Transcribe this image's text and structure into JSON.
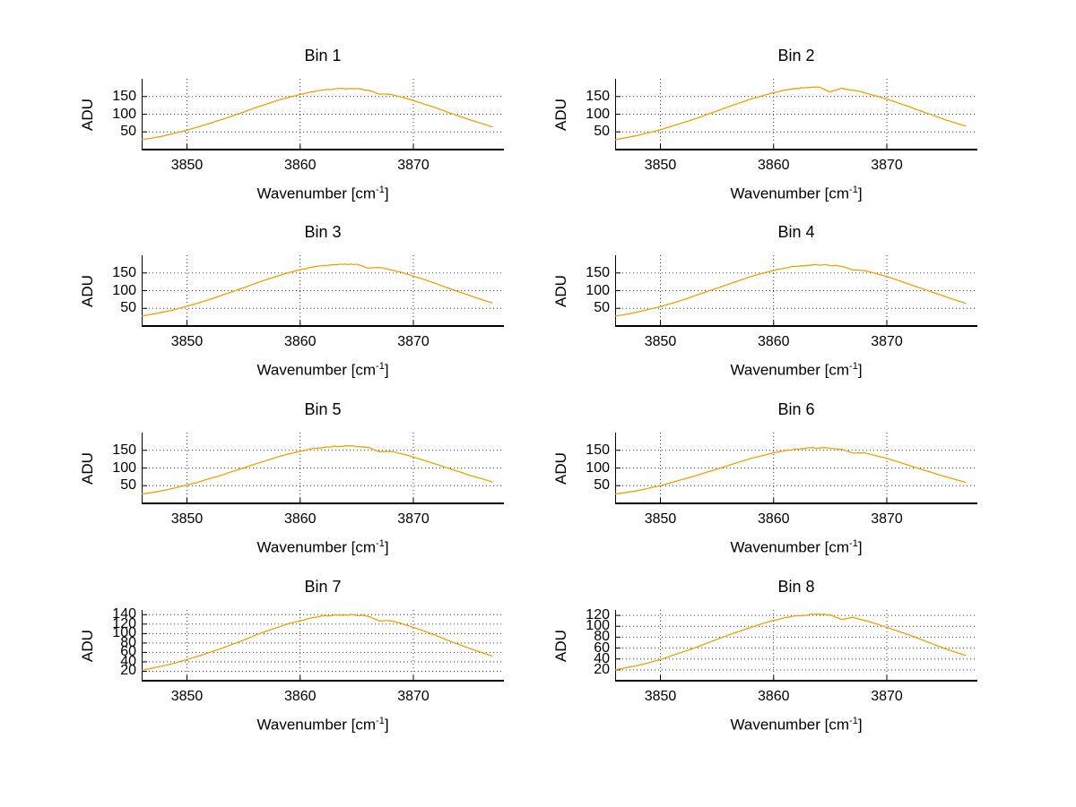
{
  "figure": {
    "background": "#ffffff",
    "line_color": "#EEA000",
    "axis_color": "#000000",
    "grid_color": "#3a3a3a"
  },
  "chart_data": [
    {
      "type": "line",
      "title": "Bin 1",
      "ylabel": "ADU",
      "xlabel": {
        "pre": "Wavenumber [cm",
        "sup": "-1",
        "post": "]"
      },
      "xlim": [
        3846,
        3878
      ],
      "ylim": [
        0,
        200
      ],
      "xticks": [
        3850,
        3860,
        3870
      ],
      "yticks": [
        50,
        100,
        150
      ],
      "x_start": 3846,
      "x_step": 1,
      "y": [
        28,
        33,
        39,
        47,
        55,
        64,
        74,
        84,
        95,
        106,
        118,
        128,
        139,
        148,
        156,
        163,
        168,
        171,
        173,
        172,
        167,
        157,
        156,
        148,
        139,
        128,
        118,
        106,
        95,
        84,
        74,
        64
      ]
    },
    {
      "type": "line",
      "title": "Bin 2",
      "ylabel": "ADU",
      "xlabel": {
        "pre": "Wavenumber [cm",
        "sup": "-1",
        "post": "]"
      },
      "xlim": [
        3846,
        3878
      ],
      "ylim": [
        0,
        200
      ],
      "xticks": [
        3850,
        3860,
        3870
      ],
      "yticks": [
        50,
        100,
        150
      ],
      "x_start": 3846,
      "x_step": 1,
      "y": [
        28,
        34,
        40,
        48,
        56,
        66,
        76,
        86,
        98,
        109,
        121,
        132,
        143,
        152,
        161,
        168,
        173,
        176,
        177,
        163,
        173,
        168,
        161,
        152,
        143,
        132,
        121,
        109,
        98,
        86,
        76,
        66
      ]
    },
    {
      "type": "line",
      "title": "Bin 3",
      "ylabel": "ADU",
      "xlabel": {
        "pre": "Wavenumber [cm",
        "sup": "-1",
        "post": "]"
      },
      "xlim": [
        3846,
        3878
      ],
      "ylim": [
        0,
        200
      ],
      "xticks": [
        3850,
        3860,
        3870
      ],
      "yticks": [
        50,
        100,
        150
      ],
      "x_start": 3846,
      "x_step": 1,
      "y": [
        28,
        34,
        40,
        47,
        56,
        65,
        75,
        86,
        97,
        108,
        120,
        131,
        141,
        151,
        159,
        166,
        171,
        174,
        175,
        174,
        164,
        166,
        159,
        151,
        141,
        131,
        120,
        108,
        97,
        86,
        75,
        65
      ]
    },
    {
      "type": "line",
      "title": "Bin 4",
      "ylabel": "ADU",
      "xlabel": {
        "pre": "Wavenumber [cm",
        "sup": "-1",
        "post": "]"
      },
      "xlim": [
        3846,
        3878
      ],
      "ylim": [
        0,
        200
      ],
      "xticks": [
        3850,
        3860,
        3870
      ],
      "yticks": [
        50,
        100,
        150
      ],
      "x_start": 3846,
      "x_step": 1,
      "y": [
        28,
        33,
        40,
        47,
        55,
        64,
        74,
        85,
        96,
        107,
        118,
        129,
        140,
        149,
        157,
        164,
        169,
        172,
        173,
        172,
        169,
        158,
        157,
        149,
        140,
        129,
        118,
        107,
        96,
        85,
        74,
        64
      ]
    },
    {
      "type": "line",
      "title": "Bin 5",
      "ylabel": "ADU",
      "xlabel": {
        "pre": "Wavenumber [cm",
        "sup": "-1",
        "post": "]"
      },
      "xlim": [
        3846,
        3878
      ],
      "ylim": [
        0,
        200
      ],
      "xticks": [
        3850,
        3860,
        3870
      ],
      "yticks": [
        50,
        100,
        150
      ],
      "x_start": 3846,
      "x_step": 1,
      "y": [
        26,
        31,
        37,
        44,
        52,
        60,
        70,
        79,
        90,
        100,
        111,
        121,
        131,
        140,
        147,
        154,
        158,
        161,
        162,
        161,
        158,
        146,
        147,
        140,
        131,
        121,
        111,
        100,
        90,
        79,
        70,
        60
      ]
    },
    {
      "type": "line",
      "title": "Bin 6",
      "ylabel": "ADU",
      "xlabel": {
        "pre": "Wavenumber [cm",
        "sup": "-1",
        "post": "]"
      },
      "xlim": [
        3846,
        3878
      ],
      "ylim": [
        0,
        200
      ],
      "xticks": [
        3850,
        3860,
        3870
      ],
      "yticks": [
        50,
        100,
        150
      ],
      "x_start": 3846,
      "x_step": 1,
      "y": [
        26,
        31,
        36,
        43,
        50,
        59,
        68,
        77,
        87,
        97,
        107,
        117,
        127,
        135,
        143,
        149,
        153,
        156,
        157,
        156,
        153,
        142,
        143,
        135,
        127,
        117,
        107,
        97,
        87,
        77,
        68,
        59
      ]
    },
    {
      "type": "line",
      "title": "Bin 7",
      "ylabel": "ADU",
      "xlabel": {
        "pre": "Wavenumber [cm",
        "sup": "-1",
        "post": "]"
      },
      "xlim": [
        3846,
        3878
      ],
      "ylim": [
        0,
        150
      ],
      "xticks": [
        3850,
        3860,
        3870
      ],
      "yticks": [
        20,
        40,
        60,
        80,
        100,
        120,
        140
      ],
      "x_start": 3846,
      "x_step": 1,
      "y": [
        22,
        27,
        32,
        38,
        45,
        52,
        60,
        68,
        77,
        86,
        96,
        105,
        113,
        121,
        127,
        133,
        137,
        139,
        140,
        139,
        137,
        127,
        127,
        121,
        113,
        105,
        96,
        86,
        77,
        68,
        60,
        52
      ]
    },
    {
      "type": "line",
      "title": "Bin 8",
      "ylabel": "ADU",
      "xlabel": {
        "pre": "Wavenumber [cm",
        "sup": "-1",
        "post": "]"
      },
      "xlim": [
        3846,
        3878
      ],
      "ylim": [
        0,
        130
      ],
      "xticks": [
        3850,
        3860,
        3870
      ],
      "yticks": [
        20,
        40,
        60,
        80,
        100,
        120
      ],
      "x_start": 3846,
      "x_step": 1,
      "y": [
        20,
        24,
        28,
        33,
        39,
        46,
        53,
        60,
        68,
        76,
        84,
        91,
        98,
        105,
        111,
        116,
        119,
        121,
        122,
        121,
        113,
        116,
        111,
        105,
        98,
        91,
        84,
        76,
        68,
        60,
        53,
        46
      ]
    }
  ]
}
